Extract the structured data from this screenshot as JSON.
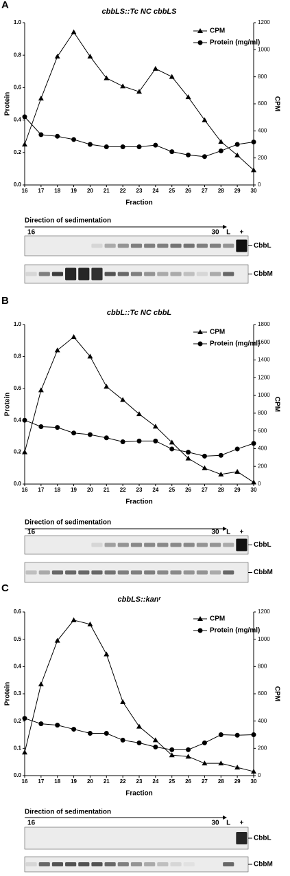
{
  "chart_data": [
    {
      "type": "line",
      "panel": "A",
      "title": "cbbLS::Tc NC cbbLS",
      "x_label": "Fraction",
      "y_label": "Protein",
      "y2_label": "CPM",
      "x": [
        16,
        17,
        18,
        19,
        20,
        21,
        22,
        23,
        24,
        25,
        26,
        27,
        28,
        29,
        30
      ],
      "xlim": [
        16,
        30
      ],
      "xticks": [
        16,
        17,
        18,
        19,
        20,
        21,
        22,
        23,
        24,
        25,
        26,
        27,
        28,
        29,
        30
      ],
      "ylim": [
        0,
        1.0
      ],
      "yticks": [
        {
          "value": 0,
          "label": "0.0"
        },
        0.2,
        0.4,
        0.6,
        0.8,
        {
          "value": 1,
          "label": "1.0"
        }
      ],
      "y2lim": [
        0,
        1200
      ],
      "y2ticks": [
        0,
        200,
        400,
        600,
        800,
        1000,
        1200
      ],
      "series": [
        {
          "name": "CPM",
          "color": "#000000",
          "marker": "triangle",
          "axis": "y2",
          "values": [
            300,
            640,
            950,
            1130,
            950,
            790,
            730,
            690,
            860,
            800,
            650,
            480,
            320,
            220,
            110
          ]
        },
        {
          "name": "Protein (mg/ml)",
          "color": "#000000",
          "marker": "circle",
          "values": [
            0.42,
            0.31,
            0.3,
            0.28,
            0.25,
            0.235,
            0.235,
            0.235,
            0.245,
            0.205,
            0.185,
            0.175,
            0.21,
            0.25,
            0.265
          ]
        }
      ],
      "blot": {
        "direction": "Direction of sedimentation",
        "lanes": [
          "16",
          "30",
          "L",
          "+"
        ],
        "rows": [
          "CbbL",
          "CbbM"
        ]
      }
    },
    {
      "type": "line",
      "panel": "B",
      "title": "cbbL::Tc NC cbbL",
      "x_label": "Fraction",
      "y_label": "Protein",
      "y2_label": "CPM",
      "x": [
        16,
        17,
        18,
        19,
        20,
        21,
        22,
        23,
        24,
        25,
        26,
        27,
        28,
        29,
        30
      ],
      "xlim": [
        16,
        30
      ],
      "xticks": [
        16,
        17,
        18,
        19,
        20,
        21,
        22,
        23,
        24,
        25,
        26,
        27,
        28,
        29,
        30
      ],
      "ylim": [
        0,
        1.0
      ],
      "yticks": [
        {
          "value": 0,
          "label": "0.0"
        },
        0.2,
        0.4,
        0.6,
        0.8,
        {
          "value": 1,
          "label": "1.0"
        }
      ],
      "y2lim": [
        0,
        1800
      ],
      "y2ticks": [
        0,
        200,
        400,
        600,
        800,
        1000,
        1200,
        1400,
        1600,
        1800
      ],
      "series": [
        {
          "name": "CPM",
          "color": "#000000",
          "marker": "triangle",
          "axis": "y2",
          "values": [
            360,
            1060,
            1510,
            1660,
            1440,
            1100,
            950,
            790,
            650,
            470,
            290,
            180,
            110,
            140,
            20
          ]
        },
        {
          "name": "Protein (mg/ml)",
          "color": "#000000",
          "marker": "circle",
          "values": [
            0.4,
            0.36,
            0.355,
            0.32,
            0.31,
            0.29,
            0.265,
            0.27,
            0.27,
            0.22,
            0.2,
            0.175,
            0.18,
            0.22,
            0.255
          ]
        }
      ],
      "blot": {
        "direction": "Direction of sedimentation",
        "lanes": [
          "16",
          "30",
          "L",
          "+"
        ],
        "rows": [
          "CbbL",
          "CbbM"
        ]
      }
    },
    {
      "type": "line",
      "panel": "C",
      "title": "cbbLS::kanʳ",
      "x_label": "Fraction",
      "y_label": "Protein",
      "y2_label": "CPM",
      "x": [
        16,
        17,
        18,
        19,
        20,
        21,
        22,
        23,
        24,
        25,
        26,
        27,
        28,
        29,
        30
      ],
      "xlim": [
        16,
        30
      ],
      "xticks": [
        16,
        17,
        18,
        19,
        20,
        21,
        22,
        23,
        24,
        25,
        26,
        27,
        28,
        29,
        30
      ],
      "ylim": [
        0,
        0.6
      ],
      "yticks": [
        {
          "value": 0,
          "label": "0.0"
        },
        0.1,
        0.2,
        0.3,
        0.4,
        0.5,
        0.6
      ],
      "y2lim": [
        0,
        1200
      ],
      "y2ticks": [
        0,
        200,
        400,
        600,
        800,
        1000,
        1200
      ],
      "series": [
        {
          "name": "CPM",
          "color": "#000000",
          "marker": "triangle",
          "axis": "y2",
          "values": [
            170,
            670,
            990,
            1140,
            1110,
            890,
            540,
            360,
            260,
            150,
            140,
            90,
            90,
            60,
            30
          ]
        },
        {
          "name": "Protein (mg/ml)",
          "color": "#000000",
          "marker": "circle",
          "values": [
            0.21,
            0.19,
            0.185,
            0.17,
            0.155,
            0.155,
            0.13,
            0.12,
            0.105,
            0.095,
            0.095,
            0.12,
            0.15,
            0.148,
            0.15
          ]
        }
      ],
      "blot": {
        "direction": "Direction of sedimentation",
        "lanes": [
          "16",
          "30",
          "L",
          "+"
        ],
        "rows": [
          "CbbL",
          "CbbM"
        ]
      }
    }
  ]
}
